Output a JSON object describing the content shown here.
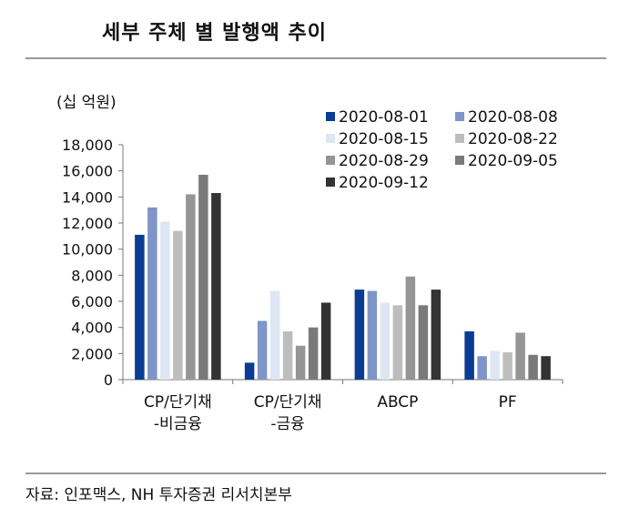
{
  "title": "세부 주체 별 발행액 추이",
  "source": "자료: 인포맥스, NH 투자증권 리서치본부",
  "chart_data": {
    "type": "bar",
    "unit_label": "(십 억원)",
    "categories": [
      [
        "CP/단기채",
        "-비금융"
      ],
      [
        "CP/단기채",
        "-금융"
      ],
      [
        "ABCP"
      ],
      [
        "PF"
      ]
    ],
    "series": [
      {
        "name": "2020-08-01",
        "color": "#0a3d91",
        "values": [
          11100,
          1300,
          6900,
          3700
        ]
      },
      {
        "name": "2020-08-08",
        "color": "#7f95c8",
        "values": [
          13200,
          4500,
          6800,
          1800
        ]
      },
      {
        "name": "2020-08-15",
        "color": "#dde6f2",
        "values": [
          12100,
          6800,
          5900,
          2200
        ]
      },
      {
        "name": "2020-08-22",
        "color": "#bdbdbd",
        "values": [
          11400,
          3700,
          5700,
          2100
        ]
      },
      {
        "name": "2020-08-29",
        "color": "#959595",
        "values": [
          14200,
          2600,
          7900,
          3600
        ]
      },
      {
        "name": "2020-09-05",
        "color": "#7a7a7a",
        "values": [
          15700,
          4000,
          5700,
          1900
        ]
      },
      {
        "name": "2020-09-12",
        "color": "#333333",
        "values": [
          14300,
          5900,
          6900,
          1800
        ]
      }
    ],
    "ylim": [
      0,
      18000
    ],
    "yticks": [
      "0",
      "2,000",
      "4,000",
      "6,000",
      "8,000",
      "10,000",
      "12,000",
      "14,000",
      "16,000",
      "18,000"
    ],
    "ytick_values": [
      0,
      2000,
      4000,
      6000,
      8000,
      10000,
      12000,
      14000,
      16000,
      18000
    ],
    "grid": false,
    "legend_position": "top-right"
  }
}
